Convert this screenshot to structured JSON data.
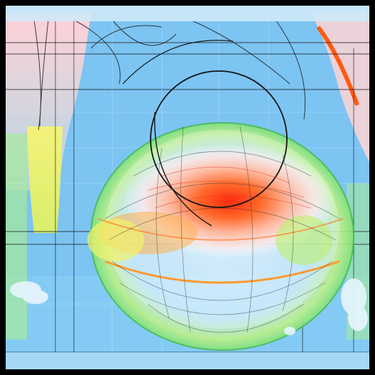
{
  "header": {
    "text": ""
  },
  "footer": {
    "text": ""
  },
  "labels": {
    "unit": ""
  },
  "colors": {
    "background": "#7cc4f2",
    "accent_red": "#ff3b14",
    "accent_orange": "#ff9a30",
    "accent_yellow": "#e9f06a",
    "accent_green": "#7ee07a",
    "accent_pink": "#ffd6d6",
    "line": "#141414",
    "frame": "#000000"
  }
}
